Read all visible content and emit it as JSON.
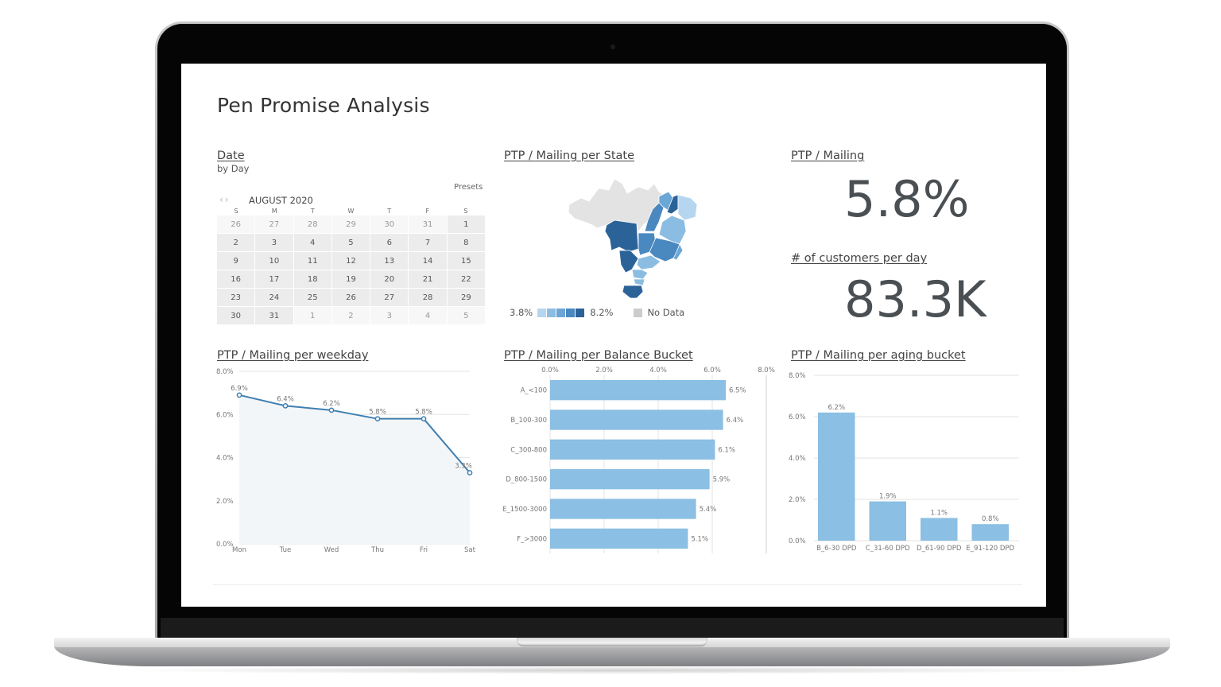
{
  "page": {
    "title": "Pen Promise Analysis"
  },
  "date_card": {
    "title": "Date",
    "subtitle": "by Day",
    "presets_label": "Presets",
    "prev_icon": "chevron-left",
    "next_icon": "chevron-right",
    "month_label": "AUGUST 2020",
    "weekdays": [
      "S",
      "M",
      "T",
      "W",
      "T",
      "F",
      "S"
    ],
    "weeks": [
      [
        "26",
        "27",
        "28",
        "29",
        "30",
        "31",
        "1"
      ],
      [
        "2",
        "3",
        "4",
        "5",
        "6",
        "7",
        "8"
      ],
      [
        "9",
        "10",
        "11",
        "12",
        "13",
        "14",
        "15"
      ],
      [
        "16",
        "17",
        "18",
        "19",
        "20",
        "21",
        "22"
      ],
      [
        "23",
        "24",
        "25",
        "26",
        "27",
        "28",
        "29"
      ],
      [
        "30",
        "31",
        "1",
        "2",
        "3",
        "4",
        "5"
      ]
    ]
  },
  "state_map": {
    "title": "PTP / Mailing per State",
    "legend_min": "3.8%",
    "legend_max": "8.2%",
    "legend_colors": [
      "#b6d6ef",
      "#8bbde2",
      "#6aa6d6",
      "#4a88c0",
      "#2b6399"
    ],
    "no_data_label": "No Data",
    "no_data_color": "#cccccc"
  },
  "kpis": {
    "ptp_mailing": {
      "title": "PTP / Mailing",
      "value": "5.8%"
    },
    "customers_per_day": {
      "title": "# of customers per day",
      "value": "83.3K"
    }
  },
  "colors": {
    "line": "#3f7fb0",
    "bar": "#8bbfe3",
    "grid": "#e3e3e3",
    "axis_text": "#777777"
  },
  "chart_data": [
    {
      "type": "line",
      "title": "PTP / Mailing per weekday",
      "categories": [
        "Mon",
        "Tue",
        "Wed",
        "Thu",
        "Fri",
        "Sat"
      ],
      "values": [
        6.9,
        6.4,
        6.2,
        5.8,
        5.8,
        3.3
      ],
      "labels": [
        "6.9%",
        "6.4%",
        "6.2%",
        "5.8%",
        "5.8%",
        "3.3%"
      ],
      "yticks": [
        "0.0%",
        "2.0%",
        "4.0%",
        "6.0%",
        "8.0%"
      ],
      "ylim": [
        0,
        8
      ],
      "xlabel": "",
      "ylabel": "",
      "grid": true
    },
    {
      "type": "bar",
      "orientation": "horizontal",
      "title": "PTP / Mailing per Balance Bucket",
      "categories": [
        "A_<100",
        "B_100-300",
        "C_300-800",
        "D_800-1500",
        "E_1500-3000",
        "F_>3000"
      ],
      "values": [
        6.5,
        6.4,
        6.1,
        5.9,
        5.4,
        5.1
      ],
      "labels": [
        "6.5%",
        "6.4%",
        "6.1%",
        "5.9%",
        "5.4%",
        "5.1%"
      ],
      "xticks": [
        "0.0%",
        "2.0%",
        "4.0%",
        "6.0%",
        "8.0%"
      ],
      "xlim": [
        0,
        8
      ],
      "grid": true
    },
    {
      "type": "bar",
      "title": "PTP / Mailing per aging bucket",
      "categories": [
        "B_6-30 DPD",
        "C_31-60 DPD",
        "D_61-90 DPD",
        "E_91-120 DPD"
      ],
      "values": [
        6.2,
        1.9,
        1.1,
        0.8
      ],
      "labels": [
        "6.2%",
        "1.9%",
        "1.1%",
        "0.8%"
      ],
      "yticks": [
        "0.0%",
        "2.0%",
        "4.0%",
        "6.0%",
        "8.0%"
      ],
      "ylim": [
        0,
        8
      ],
      "grid": true
    }
  ]
}
